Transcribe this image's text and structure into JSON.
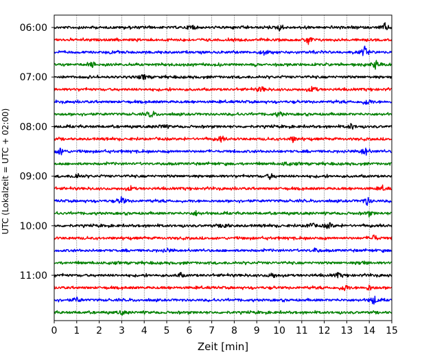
{
  "chart_data": {
    "type": "line",
    "title": "",
    "xlabel": "Zeit  [min]",
    "ylabel": "UTC (Lokalzeit = UTC + 02:00)",
    "xlim": [
      0,
      15
    ],
    "x_ticks": [
      0,
      1,
      2,
      3,
      4,
      5,
      6,
      7,
      8,
      9,
      10,
      11,
      12,
      13,
      14,
      15
    ],
    "x_grid": true,
    "y_tick_labels": [
      "06:00",
      "07:00",
      "08:00",
      "09:00",
      "10:00",
      "11:00"
    ],
    "trace_colors": [
      "#000000",
      "#ff0000",
      "#0000ff",
      "#008000"
    ],
    "traces": [
      {
        "start": "06:00",
        "color": "#000000",
        "events": [
          {
            "min": 6.1,
            "amp": 5
          },
          {
            "min": 10.0,
            "amp": 4
          },
          {
            "min": 14.7,
            "amp": 6
          }
        ]
      },
      {
        "start": "06:15",
        "color": "#ff0000",
        "events": [
          {
            "min": 11.3,
            "amp": 7
          }
        ]
      },
      {
        "start": "06:30",
        "color": "#0000ff",
        "events": [
          {
            "min": 9.3,
            "amp": 4
          },
          {
            "min": 13.8,
            "amp": 8
          }
        ]
      },
      {
        "start": "06:45",
        "color": "#008000",
        "events": [
          {
            "min": 1.7,
            "amp": 4
          },
          {
            "min": 14.3,
            "amp": 6
          }
        ]
      },
      {
        "start": "07:00",
        "color": "#000000",
        "events": [
          {
            "min": 4.0,
            "amp": 3
          }
        ]
      },
      {
        "start": "07:15",
        "color": "#ff0000",
        "events": [
          {
            "min": 9.2,
            "amp": 4
          },
          {
            "min": 11.5,
            "amp": 5
          }
        ]
      },
      {
        "start": "07:30",
        "color": "#0000ff",
        "events": [
          {
            "min": 13.9,
            "amp": 5
          }
        ]
      },
      {
        "start": "07:45",
        "color": "#008000",
        "events": [
          {
            "min": 4.3,
            "amp": 5
          },
          {
            "min": 10.0,
            "amp": 4
          }
        ]
      },
      {
        "start": "08:00",
        "color": "#000000",
        "events": [
          {
            "min": 4.8,
            "amp": 3
          },
          {
            "min": 13.2,
            "amp": 4
          }
        ]
      },
      {
        "start": "08:15",
        "color": "#ff0000",
        "events": [
          {
            "min": 7.4,
            "amp": 4
          },
          {
            "min": 10.6,
            "amp": 4
          }
        ]
      },
      {
        "start": "08:30",
        "color": "#0000ff",
        "events": [
          {
            "min": 0.3,
            "amp": 6
          },
          {
            "min": 13.8,
            "amp": 7
          }
        ]
      },
      {
        "start": "08:45",
        "color": "#008000",
        "events": [
          {
            "min": 10.3,
            "amp": 3
          }
        ]
      },
      {
        "start": "09:00",
        "color": "#000000",
        "events": [
          {
            "min": 1.0,
            "amp": 4
          },
          {
            "min": 9.6,
            "amp": 4
          }
        ]
      },
      {
        "start": "09:15",
        "color": "#ff0000",
        "events": [
          {
            "min": 3.4,
            "amp": 3
          },
          {
            "min": 14.6,
            "amp": 3
          }
        ]
      },
      {
        "start": "09:30",
        "color": "#0000ff",
        "events": [
          {
            "min": 3.0,
            "amp": 6
          },
          {
            "min": 13.9,
            "amp": 6
          }
        ]
      },
      {
        "start": "09:45",
        "color": "#008000",
        "events": [
          {
            "min": 6.3,
            "amp": 3
          },
          {
            "min": 14.0,
            "amp": 3
          }
        ]
      },
      {
        "start": "10:00",
        "color": "#000000",
        "events": [
          {
            "min": 7.6,
            "amp": 4
          },
          {
            "min": 11.4,
            "amp": 4
          },
          {
            "min": 12.2,
            "amp": 5
          }
        ]
      },
      {
        "start": "10:15",
        "color": "#ff0000",
        "events": [
          {
            "min": 14.2,
            "amp": 5
          }
        ]
      },
      {
        "start": "10:30",
        "color": "#0000ff",
        "events": [
          {
            "min": 5.0,
            "amp": 3
          },
          {
            "min": 11.6,
            "amp": 3
          }
        ]
      },
      {
        "start": "10:45",
        "color": "#008000",
        "events": [
          {
            "min": 13.7,
            "amp": 3
          }
        ]
      },
      {
        "start": "11:00",
        "color": "#000000",
        "events": [
          {
            "min": 5.6,
            "amp": 3
          },
          {
            "min": 9.7,
            "amp": 4
          },
          {
            "min": 12.6,
            "amp": 3
          }
        ]
      },
      {
        "start": "11:15",
        "color": "#ff0000",
        "events": [
          {
            "min": 12.9,
            "amp": 5
          },
          {
            "min": 14.0,
            "amp": 4
          }
        ]
      },
      {
        "start": "11:30",
        "color": "#0000ff",
        "events": [
          {
            "min": 1.0,
            "amp": 4
          },
          {
            "min": 14.2,
            "amp": 7
          }
        ]
      },
      {
        "start": "11:45",
        "color": "#008000",
        "events": [
          {
            "min": 3.0,
            "amp": 3
          }
        ]
      }
    ]
  }
}
